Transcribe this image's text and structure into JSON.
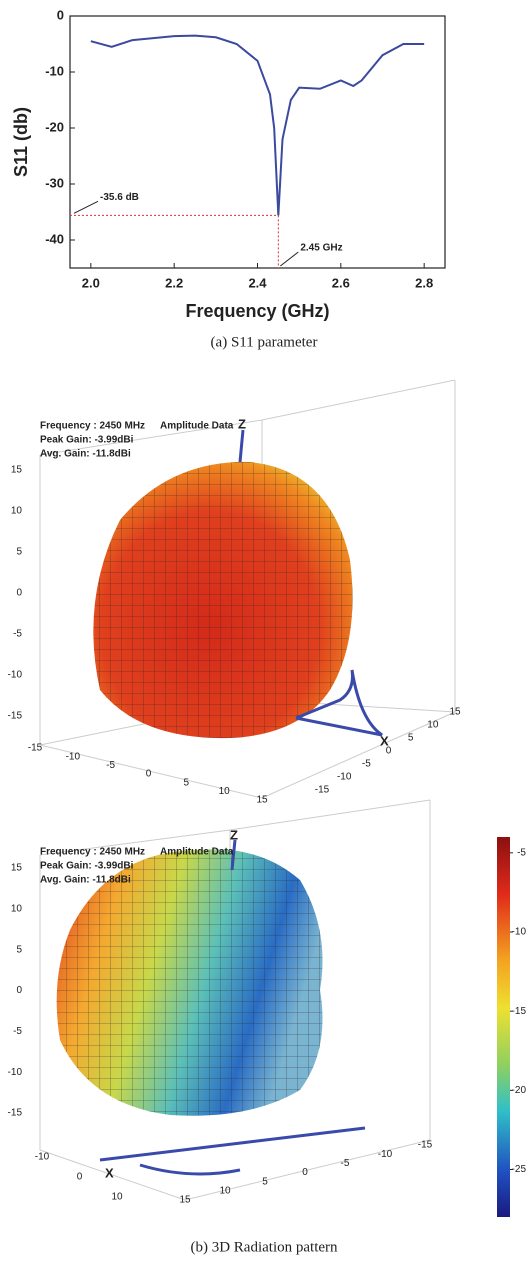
{
  "chart_data": [
    {
      "type": "line",
      "x_label": "Frequency (GHz)",
      "y_label": "S11 (db)",
      "color": "#3b4a9c",
      "x": [
        2.0,
        2.05,
        2.1,
        2.2,
        2.25,
        2.3,
        2.35,
        2.4,
        2.43,
        2.44,
        2.45,
        2.46,
        2.48,
        2.5,
        2.55,
        2.6,
        2.63,
        2.65,
        2.7,
        2.75,
        2.8
      ],
      "values": [
        -4.5,
        -5.5,
        -4.3,
        -3.6,
        -3.5,
        -3.8,
        -5,
        -8,
        -14,
        -20,
        -35.6,
        -22,
        -15,
        -12.8,
        -13,
        -11.5,
        -12.5,
        -11.5,
        -7,
        -5,
        -5
      ],
      "xlim": [
        1.95,
        2.85
      ],
      "ylim": [
        -45,
        0
      ],
      "xticks": [
        {
          "value": 2,
          "label": "2.0"
        },
        2.2,
        2.4,
        2.6,
        2.8
      ],
      "yticks": [
        0,
        -10,
        -20,
        -30,
        -40
      ],
      "annotations": [
        {
          "text": "-35.6 dB",
          "value": -35.6,
          "axis": "y"
        },
        {
          "text": "2.45 GHz",
          "value": 2.45,
          "axis": "x"
        }
      ]
    },
    {
      "type": "surface-3d",
      "annotations": [
        "Frequency : 2450 MHz",
        "Amplitude Data",
        "Peak Gain: -3.99dBi",
        "Avg.  Gain: -11.8dBi"
      ],
      "axis_letters": [
        "Z",
        "X"
      ],
      "zlim": [
        -15,
        15
      ],
      "zticks": [
        15,
        10,
        5,
        0,
        -5,
        -10,
        -15
      ],
      "xlim": [
        -15,
        15
      ],
      "xticks": [
        -15,
        -10,
        -5,
        0,
        5,
        10,
        15
      ],
      "ylim": [
        -15,
        15
      ],
      "yticks": [
        15,
        10,
        5,
        0,
        -5,
        -10,
        -15
      ]
    },
    {
      "type": "surface-3d",
      "annotations": [
        "Frequency : 2450 MHz",
        "Amplitude Data",
        "Peak Gain: -3.99dBi",
        "Avg.  Gain: -11.8dBi"
      ],
      "axis_letters": [
        "Z",
        "X"
      ],
      "zlim": [
        -15,
        15
      ],
      "zticks": [
        15,
        10,
        5,
        0,
        -5,
        -10,
        -15
      ],
      "xlim": [
        -10,
        10
      ],
      "xticks": [
        -10,
        0,
        10
      ],
      "ylim": [
        -15,
        15
      ],
      "yticks": [
        15,
        10,
        5,
        0,
        -5,
        -10,
        -15
      ],
      "clim": [
        -28,
        -4
      ],
      "cticks": [
        -5,
        -10,
        -15,
        -20,
        -25
      ]
    }
  ],
  "captions": [
    "(a) S11 parameter",
    "(b) 3D Radiation pattern"
  ]
}
